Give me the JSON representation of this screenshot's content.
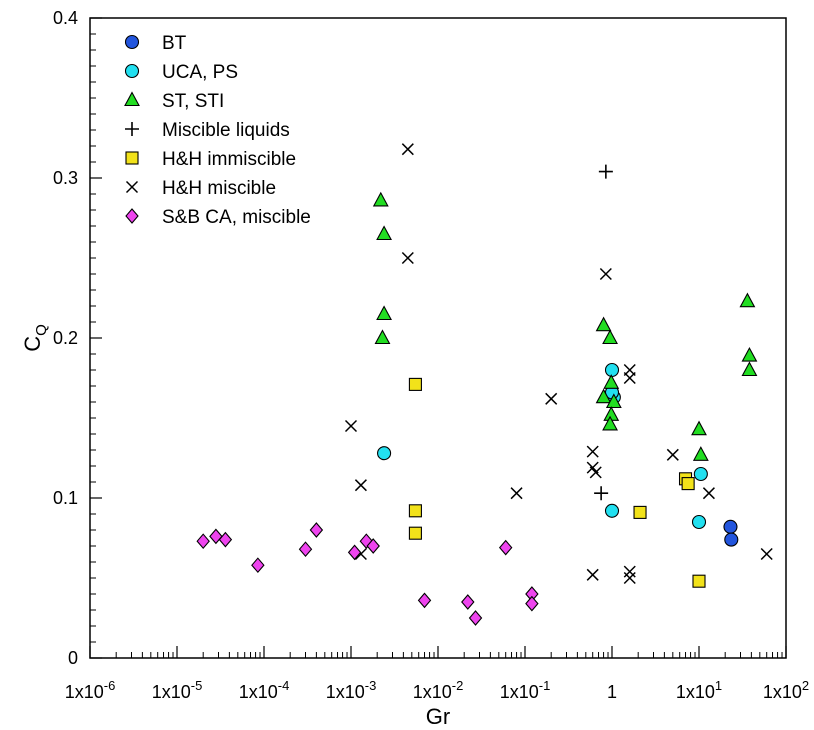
{
  "chart_data": {
    "type": "scatter",
    "title": "",
    "xlabel": "Gr",
    "ylabel": "C",
    "ylabel_subscript": "Q",
    "xscale": "log",
    "xlim": [
      1e-06,
      100
    ],
    "ylim": [
      0,
      0.4
    ],
    "grid": false,
    "legend_position": "top-left",
    "x_tick_labels": [
      {
        "value": 1e-06,
        "label": "1x10-6"
      },
      {
        "value": 1e-05,
        "label": "1x10-5"
      },
      {
        "value": 0.0001,
        "label": "1x10-4"
      },
      {
        "value": 0.001,
        "label": "1x10-3"
      },
      {
        "value": 0.01,
        "label": "1x10-2"
      },
      {
        "value": 0.1,
        "label": "1x10-1"
      },
      {
        "value": 1,
        "label": "1"
      },
      {
        "value": 10,
        "label": "1x101"
      },
      {
        "value": 100,
        "label": "1x102"
      }
    ],
    "y_tick_labels": [
      {
        "value": 0,
        "label": "0"
      },
      {
        "value": 0.1,
        "label": "0.1"
      },
      {
        "value": 0.2,
        "label": "0.2"
      },
      {
        "value": 0.3,
        "label": "0.3"
      },
      {
        "value": 0.4,
        "label": "0.4"
      }
    ],
    "series": [
      {
        "name": "BT",
        "marker": "circle",
        "color": "#2255dd",
        "points": [
          [
            23,
            0.082
          ],
          [
            23.5,
            0.074
          ]
        ]
      },
      {
        "name": "UCA, PS",
        "marker": "circle",
        "color": "#22e0f0",
        "points": [
          [
            0.0024,
            0.128
          ],
          [
            1.0,
            0.092
          ],
          [
            1.0,
            0.18
          ],
          [
            1.05,
            0.163
          ],
          [
            1.0,
            0.166
          ],
          [
            10,
            0.085
          ],
          [
            10.5,
            0.115
          ]
        ]
      },
      {
        "name": "ST, STI",
        "marker": "triangle",
        "color": "#22dd22",
        "points": [
          [
            0.0022,
            0.286
          ],
          [
            0.0024,
            0.265
          ],
          [
            0.0024,
            0.215
          ],
          [
            0.0023,
            0.2
          ],
          [
            0.8,
            0.208
          ],
          [
            0.95,
            0.2
          ],
          [
            0.98,
            0.172
          ],
          [
            0.8,
            0.163
          ],
          [
            1.05,
            0.16
          ],
          [
            0.98,
            0.152
          ],
          [
            0.95,
            0.146
          ],
          [
            10,
            0.143
          ],
          [
            10.5,
            0.127
          ],
          [
            36,
            0.223
          ],
          [
            38,
            0.189
          ],
          [
            38,
            0.18
          ]
        ]
      },
      {
        "name": "Miscible liquids",
        "marker": "plus",
        "color": "#000000",
        "points": [
          [
            0.85,
            0.304
          ],
          [
            0.75,
            0.103
          ]
        ]
      },
      {
        "name": "H&H immiscible",
        "marker": "square",
        "color": "#f2e21a",
        "points": [
          [
            0.0055,
            0.171
          ],
          [
            0.0055,
            0.092
          ],
          [
            0.0055,
            0.078
          ],
          [
            2.1,
            0.091
          ],
          [
            7,
            0.112
          ],
          [
            7.5,
            0.109
          ],
          [
            10,
            0.048
          ]
        ]
      },
      {
        "name": "H&H miscible",
        "marker": "cross",
        "color": "#000000",
        "points": [
          [
            0.0045,
            0.318
          ],
          [
            0.0045,
            0.25
          ],
          [
            0.001,
            0.145
          ],
          [
            0.0013,
            0.108
          ],
          [
            0.0013,
            0.065
          ],
          [
            0.08,
            0.103
          ],
          [
            0.2,
            0.162
          ],
          [
            0.85,
            0.24
          ],
          [
            0.6,
            0.129
          ],
          [
            0.65,
            0.116
          ],
          [
            0.6,
            0.119
          ],
          [
            0.6,
            0.052
          ],
          [
            1.6,
            0.18
          ],
          [
            1.6,
            0.175
          ],
          [
            1.6,
            0.054
          ],
          [
            1.6,
            0.05
          ],
          [
            5,
            0.127
          ],
          [
            13,
            0.103
          ],
          [
            60,
            0.065
          ]
        ]
      },
      {
        "name": "S&B CA, miscible",
        "marker": "diamond",
        "color": "#ee44ee",
        "points": [
          [
            2e-05,
            0.073
          ],
          [
            2.8e-05,
            0.076
          ],
          [
            3.6e-05,
            0.074
          ],
          [
            8.5e-05,
            0.058
          ],
          [
            0.0003,
            0.068
          ],
          [
            0.0004,
            0.08
          ],
          [
            0.0011,
            0.066
          ],
          [
            0.0015,
            0.073
          ],
          [
            0.0018,
            0.07
          ],
          [
            0.007,
            0.036
          ],
          [
            0.022,
            0.035
          ],
          [
            0.027,
            0.025
          ],
          [
            0.06,
            0.069
          ],
          [
            0.12,
            0.04
          ],
          [
            0.12,
            0.034
          ]
        ]
      }
    ]
  }
}
